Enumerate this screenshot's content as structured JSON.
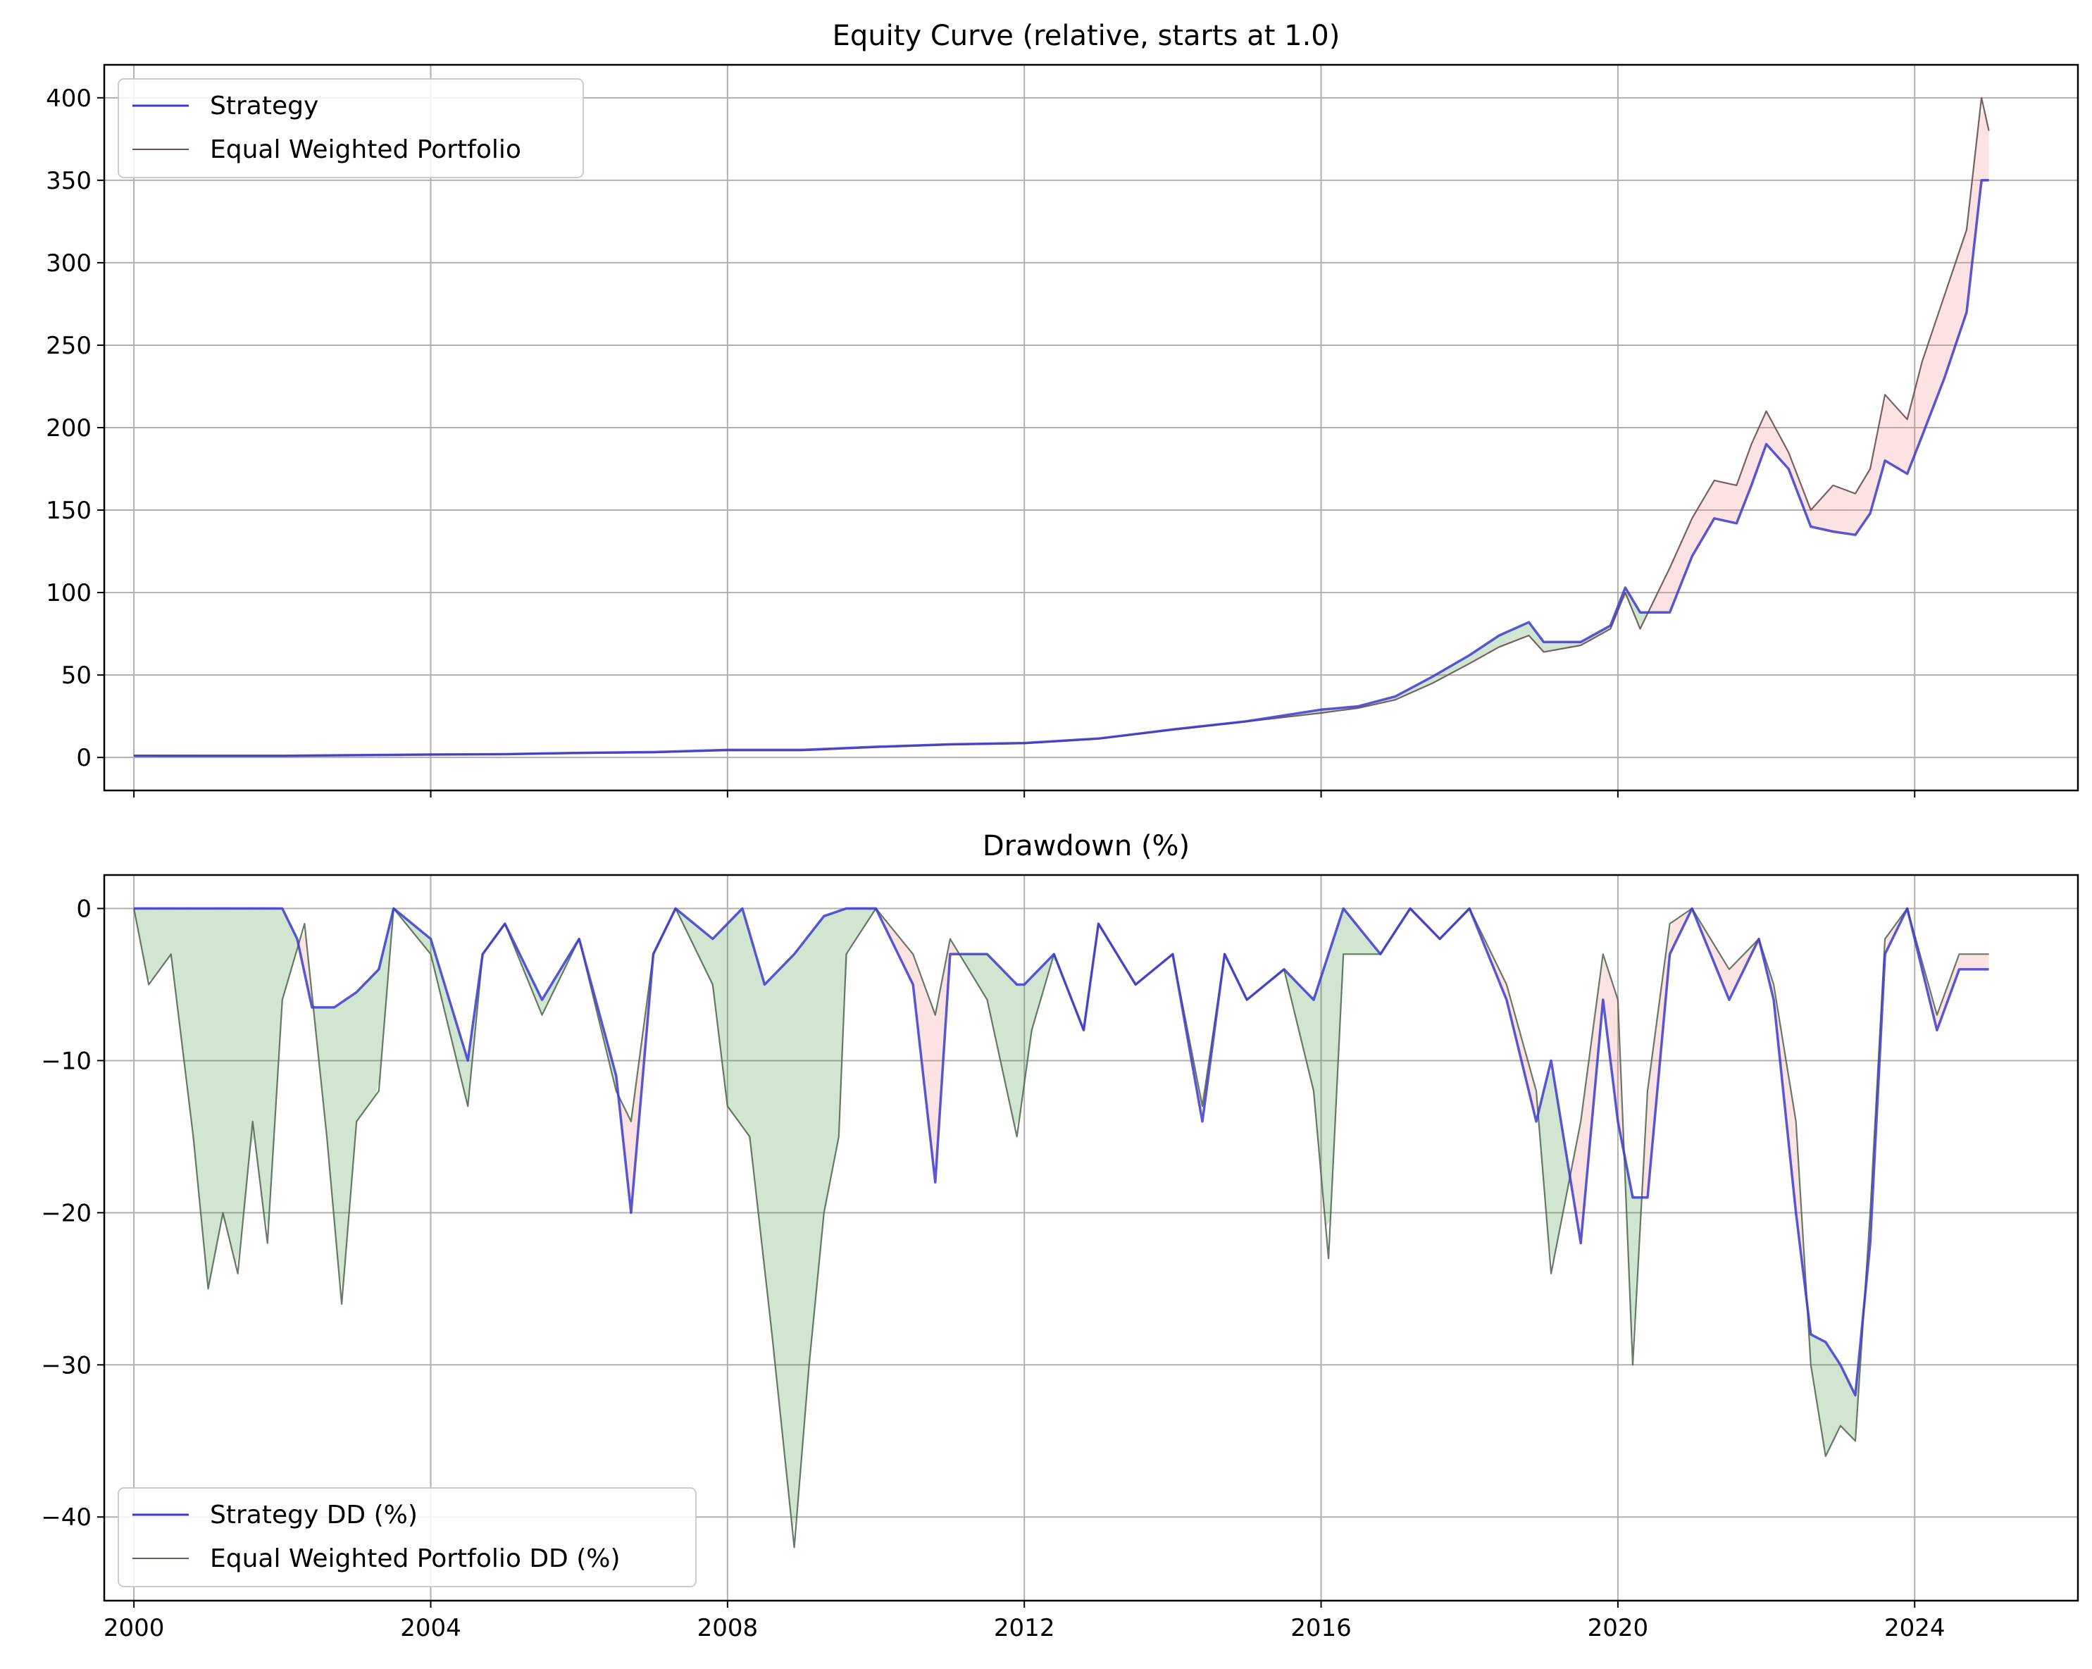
{
  "chart_data": [
    {
      "type": "line",
      "title": "Equity Curve (relative, starts at 1.0)",
      "xlabel": "",
      "ylabel": "",
      "xlim": [
        1999.6,
        2026.2
      ],
      "ylim": [
        -20,
        420
      ],
      "yticks": [
        0,
        50,
        100,
        150,
        200,
        250,
        300,
        350,
        400
      ],
      "xticks": [
        2000,
        2004,
        2008,
        2012,
        2016,
        2020,
        2024
      ],
      "grid": true,
      "legend_position": "upper-left",
      "fill_between": {
        "strategy_above_color": "#2e8b2e",
        "strategy_below_color": "#f08080"
      },
      "series": [
        {
          "name": "Strategy",
          "color": "#3b3bcc",
          "points": [
            [
              2000.0,
              1.0
            ],
            [
              2001.0,
              1.0
            ],
            [
              2002.0,
              1.0
            ],
            [
              2003.0,
              1.4
            ],
            [
              2004.0,
              1.8
            ],
            [
              2005.0,
              2.0
            ],
            [
              2006.0,
              2.8
            ],
            [
              2007.0,
              3.3
            ],
            [
              2008.0,
              4.6
            ],
            [
              2009.0,
              4.6
            ],
            [
              2010.0,
              6.5
            ],
            [
              2011.0,
              8.0
            ],
            [
              2012.0,
              8.8
            ],
            [
              2013.0,
              11.5
            ],
            [
              2014.0,
              17.0
            ],
            [
              2015.0,
              22.0
            ],
            [
              2016.0,
              29.0
            ],
            [
              2016.5,
              31.0
            ],
            [
              2017.0,
              37.0
            ],
            [
              2017.5,
              49.0
            ],
            [
              2018.0,
              62.0
            ],
            [
              2018.4,
              74.0
            ],
            [
              2018.8,
              82.0
            ],
            [
              2019.0,
              70.0
            ],
            [
              2019.5,
              70.0
            ],
            [
              2019.9,
              80.0
            ],
            [
              2020.1,
              103.0
            ],
            [
              2020.3,
              88.0
            ],
            [
              2020.7,
              88.0
            ],
            [
              2021.0,
              122.0
            ],
            [
              2021.3,
              145.0
            ],
            [
              2021.6,
              142.0
            ],
            [
              2021.8,
              165.0
            ],
            [
              2022.0,
              190.0
            ],
            [
              2022.3,
              175.0
            ],
            [
              2022.6,
              140.0
            ],
            [
              2022.9,
              137.0
            ],
            [
              2023.2,
              135.0
            ],
            [
              2023.4,
              148.0
            ],
            [
              2023.6,
              180.0
            ],
            [
              2023.9,
              172.0
            ],
            [
              2024.1,
              195.0
            ],
            [
              2024.4,
              230.0
            ],
            [
              2024.7,
              270.0
            ],
            [
              2024.9,
              350.0
            ],
            [
              2025.0,
              350.0
            ]
          ]
        },
        {
          "name": "Equal Weighted Portfolio",
          "color": "#6a5050",
          "points": [
            [
              2000.0,
              1.0
            ],
            [
              2001.0,
              0.9
            ],
            [
              2002.0,
              0.9
            ],
            [
              2003.0,
              1.4
            ],
            [
              2004.0,
              1.8
            ],
            [
              2005.0,
              2.0
            ],
            [
              2006.0,
              2.6
            ],
            [
              2007.0,
              3.0
            ],
            [
              2008.0,
              4.3
            ],
            [
              2009.0,
              4.2
            ],
            [
              2010.0,
              6.2
            ],
            [
              2011.0,
              7.8
            ],
            [
              2012.0,
              8.5
            ],
            [
              2013.0,
              11.3
            ],
            [
              2014.0,
              16.8
            ],
            [
              2015.0,
              21.8
            ],
            [
              2016.0,
              27.0
            ],
            [
              2016.5,
              30.0
            ],
            [
              2017.0,
              35.0
            ],
            [
              2017.5,
              45.0
            ],
            [
              2018.0,
              57.0
            ],
            [
              2018.4,
              67.0
            ],
            [
              2018.8,
              74.0
            ],
            [
              2019.0,
              64.0
            ],
            [
              2019.5,
              68.0
            ],
            [
              2019.9,
              78.0
            ],
            [
              2020.1,
              100.0
            ],
            [
              2020.3,
              78.0
            ],
            [
              2020.7,
              115.0
            ],
            [
              2021.0,
              145.0
            ],
            [
              2021.3,
              168.0
            ],
            [
              2021.6,
              165.0
            ],
            [
              2021.8,
              190.0
            ],
            [
              2022.0,
              210.0
            ],
            [
              2022.3,
              185.0
            ],
            [
              2022.6,
              150.0
            ],
            [
              2022.9,
              165.0
            ],
            [
              2023.2,
              160.0
            ],
            [
              2023.4,
              175.0
            ],
            [
              2023.6,
              220.0
            ],
            [
              2023.9,
              205.0
            ],
            [
              2024.1,
              240.0
            ],
            [
              2024.4,
              280.0
            ],
            [
              2024.7,
              320.0
            ],
            [
              2024.9,
              400.0
            ],
            [
              2025.0,
              380.0
            ]
          ]
        }
      ]
    },
    {
      "type": "line",
      "title": "Drawdown (%)",
      "xlabel": "",
      "ylabel": "",
      "xlim": [
        1999.6,
        2026.2
      ],
      "ylim": [
        -45.5,
        2.2
      ],
      "yticks": [
        0,
        -10,
        -20,
        -30,
        -40
      ],
      "xticks": [
        2000,
        2004,
        2008,
        2012,
        2016,
        2020,
        2024
      ],
      "grid": true,
      "legend_position": "lower-left",
      "fill_between": {
        "strategy_above_color": "#2e8b2e",
        "strategy_below_color": "#f08080"
      },
      "series": [
        {
          "name": "Strategy DD (%)",
          "color": "#3b3bcc",
          "points": [
            [
              2000.0,
              0
            ],
            [
              2001.0,
              0
            ],
            [
              2002.0,
              0
            ],
            [
              2002.2,
              -2
            ],
            [
              2002.4,
              -6.5
            ],
            [
              2002.7,
              -6.5
            ],
            [
              2003.0,
              -5.5
            ],
            [
              2003.3,
              -4
            ],
            [
              2003.5,
              0
            ],
            [
              2004.0,
              -2
            ],
            [
              2004.5,
              -10
            ],
            [
              2004.7,
              -3
            ],
            [
              2005.0,
              -1
            ],
            [
              2005.5,
              -6
            ],
            [
              2006.0,
              -2
            ],
            [
              2006.5,
              -11
            ],
            [
              2006.7,
              -20
            ],
            [
              2007.0,
              -3
            ],
            [
              2007.3,
              0
            ],
            [
              2007.8,
              -2
            ],
            [
              2008.2,
              0
            ],
            [
              2008.5,
              -5
            ],
            [
              2008.9,
              -3
            ],
            [
              2009.3,
              -0.5
            ],
            [
              2009.6,
              0
            ],
            [
              2010.0,
              0
            ],
            [
              2010.5,
              -5
            ],
            [
              2010.8,
              -18
            ],
            [
              2011.0,
              -3
            ],
            [
              2011.5,
              -3
            ],
            [
              2011.9,
              -5
            ],
            [
              2012.0,
              -5
            ],
            [
              2012.4,
              -3
            ],
            [
              2012.8,
              -8
            ],
            [
              2013.0,
              -1
            ],
            [
              2013.5,
              -5
            ],
            [
              2014.0,
              -3
            ],
            [
              2014.4,
              -14
            ],
            [
              2014.7,
              -3
            ],
            [
              2015.0,
              -6
            ],
            [
              2015.5,
              -4
            ],
            [
              2015.9,
              -6
            ],
            [
              2016.3,
              0
            ],
            [
              2016.8,
              -3
            ],
            [
              2017.2,
              0
            ],
            [
              2017.6,
              -2
            ],
            [
              2018.0,
              0
            ],
            [
              2018.5,
              -6
            ],
            [
              2018.9,
              -14
            ],
            [
              2019.1,
              -10
            ],
            [
              2019.5,
              -22
            ],
            [
              2019.8,
              -6
            ],
            [
              2020.0,
              -14
            ],
            [
              2020.2,
              -19
            ],
            [
              2020.4,
              -19
            ],
            [
              2020.7,
              -3
            ],
            [
              2021.0,
              0
            ],
            [
              2021.5,
              -6
            ],
            [
              2021.9,
              -2
            ],
            [
              2022.1,
              -6
            ],
            [
              2022.4,
              -20
            ],
            [
              2022.6,
              -28
            ],
            [
              2022.8,
              -28.5
            ],
            [
              2023.0,
              -30
            ],
            [
              2023.2,
              -32
            ],
            [
              2023.4,
              -22
            ],
            [
              2023.6,
              -3
            ],
            [
              2023.9,
              0
            ],
            [
              2024.3,
              -8
            ],
            [
              2024.6,
              -4
            ],
            [
              2025.0,
              -4
            ]
          ]
        },
        {
          "name": "Equal Weighted Portfolio DD (%)",
          "color": "#556b55",
          "points": [
            [
              2000.0,
              0
            ],
            [
              2000.2,
              -5
            ],
            [
              2000.5,
              -3
            ],
            [
              2000.8,
              -15
            ],
            [
              2001.0,
              -25
            ],
            [
              2001.2,
              -20
            ],
            [
              2001.4,
              -24
            ],
            [
              2001.6,
              -14
            ],
            [
              2001.8,
              -22
            ],
            [
              2002.0,
              -6
            ],
            [
              2002.3,
              -1
            ],
            [
              2002.6,
              -15
            ],
            [
              2002.8,
              -26
            ],
            [
              2003.0,
              -14
            ],
            [
              2003.3,
              -12
            ],
            [
              2003.5,
              0
            ],
            [
              2004.0,
              -3
            ],
            [
              2004.5,
              -13
            ],
            [
              2004.7,
              -3
            ],
            [
              2005.0,
              -1
            ],
            [
              2005.5,
              -7
            ],
            [
              2006.0,
              -2
            ],
            [
              2006.5,
              -12
            ],
            [
              2006.7,
              -14
            ],
            [
              2007.0,
              -3
            ],
            [
              2007.3,
              0
            ],
            [
              2007.8,
              -5
            ],
            [
              2008.0,
              -13
            ],
            [
              2008.3,
              -15
            ],
            [
              2008.6,
              -28
            ],
            [
              2008.9,
              -42
            ],
            [
              2009.1,
              -30
            ],
            [
              2009.3,
              -20
            ],
            [
              2009.5,
              -15
            ],
            [
              2009.6,
              -3
            ],
            [
              2010.0,
              0
            ],
            [
              2010.5,
              -3
            ],
            [
              2010.8,
              -7
            ],
            [
              2011.0,
              -2
            ],
            [
              2011.5,
              -6
            ],
            [
              2011.9,
              -15
            ],
            [
              2012.1,
              -8
            ],
            [
              2012.4,
              -3
            ],
            [
              2012.8,
              -8
            ],
            [
              2013.0,
              -1
            ],
            [
              2013.5,
              -5
            ],
            [
              2014.0,
              -3
            ],
            [
              2014.4,
              -13
            ],
            [
              2014.7,
              -3
            ],
            [
              2015.0,
              -6
            ],
            [
              2015.5,
              -4
            ],
            [
              2015.9,
              -12
            ],
            [
              2016.1,
              -23
            ],
            [
              2016.3,
              -3
            ],
            [
              2016.8,
              -3
            ],
            [
              2017.2,
              0
            ],
            [
              2017.6,
              -2
            ],
            [
              2018.0,
              0
            ],
            [
              2018.5,
              -5
            ],
            [
              2018.9,
              -12
            ],
            [
              2019.1,
              -24
            ],
            [
              2019.5,
              -14
            ],
            [
              2019.8,
              -3
            ],
            [
              2020.0,
              -6
            ],
            [
              2020.2,
              -30
            ],
            [
              2020.4,
              -12
            ],
            [
              2020.7,
              -1
            ],
            [
              2021.0,
              0
            ],
            [
              2021.5,
              -4
            ],
            [
              2021.9,
              -2
            ],
            [
              2022.1,
              -5
            ],
            [
              2022.4,
              -14
            ],
            [
              2022.6,
              -30
            ],
            [
              2022.8,
              -36
            ],
            [
              2023.0,
              -34
            ],
            [
              2023.2,
              -35
            ],
            [
              2023.4,
              -20
            ],
            [
              2023.6,
              -2
            ],
            [
              2023.9,
              0
            ],
            [
              2024.3,
              -7
            ],
            [
              2024.6,
              -3
            ],
            [
              2025.0,
              -3
            ]
          ]
        }
      ]
    }
  ]
}
